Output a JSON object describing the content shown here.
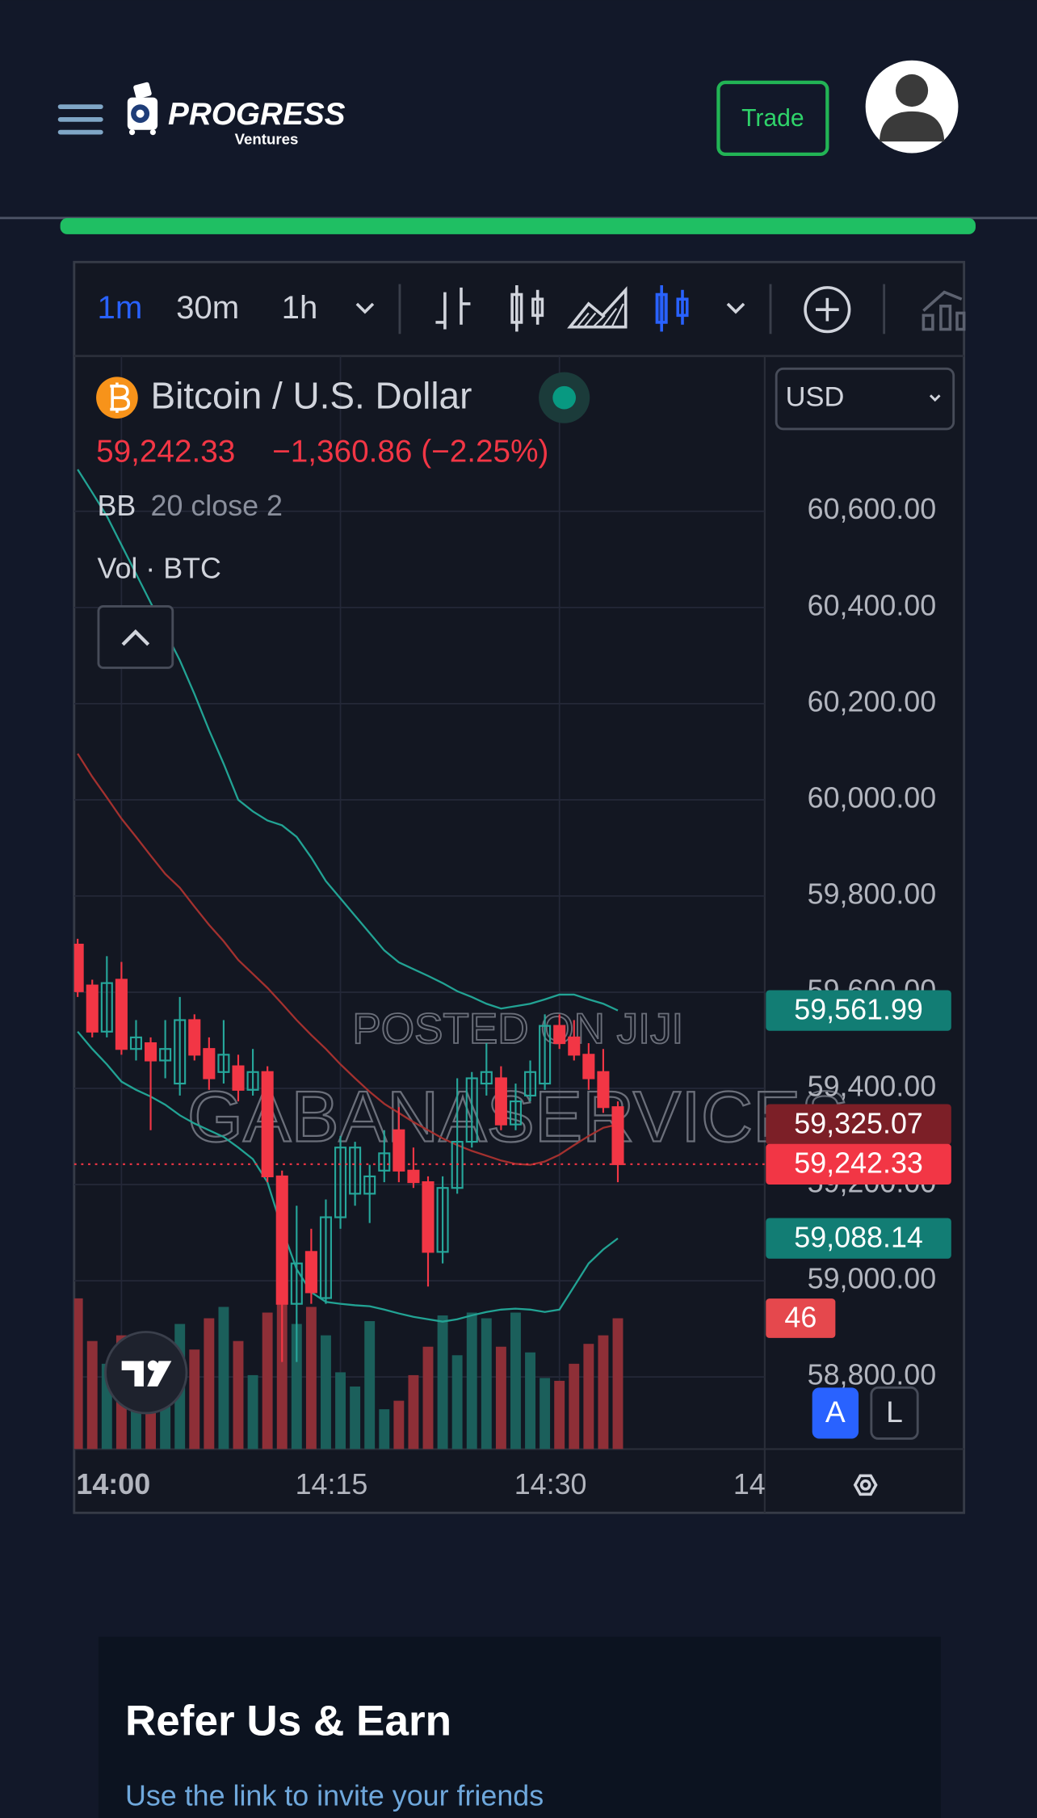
{
  "header": {
    "logo_title": "PROGRESS",
    "logo_subtitle": "Ventures",
    "trade_button": "Trade"
  },
  "toolbar": {
    "intervals": [
      "1m",
      "30m",
      "1h"
    ]
  },
  "chart_data": {
    "type": "candlestick",
    "symbol": "Bitcoin / U.S. Dollar",
    "currency": "USD",
    "close_label": "59,242.33",
    "change_label": "−1,360.86 (−2.25%)",
    "indicator_name": "BB",
    "indicator_params": "20 close 2",
    "volume_label": "Vol · BTC",
    "watermarks": [
      "POSTED ON JIJI",
      "GABANASERVICES"
    ],
    "scale_buttons": [
      "A",
      "L"
    ],
    "up_color": "#26a69a",
    "down_color": "#f23645",
    "volume_up_color": "#1b5f5b",
    "volume_down_color": "#8e2f37",
    "ylim": [
      58650,
      60923
    ],
    "yticks": [
      {
        "value": 60600,
        "label": "60,600.00"
      },
      {
        "value": 60400,
        "label": "60,400.00"
      },
      {
        "value": 60200,
        "label": "60,200.00"
      },
      {
        "value": 60000,
        "label": "60,000.00"
      },
      {
        "value": 59800,
        "label": "59,800.00"
      },
      {
        "value": 59600,
        "label": "59,600.00"
      },
      {
        "value": 59400,
        "label": "59,400.00"
      },
      {
        "value": 59200,
        "label": "59,200.00"
      },
      {
        "value": 59000,
        "label": "59,000.00"
      },
      {
        "value": 58800,
        "label": "58,800.00"
      }
    ],
    "xlim": [
      -0.24,
      47.06
    ],
    "xticks": [
      {
        "value": 3,
        "label": "14:00"
      },
      {
        "value": 18,
        "label": "14:15"
      },
      {
        "value": 33,
        "label": "14:30"
      },
      {
        "value": 48,
        "label": "14:"
      }
    ],
    "grid": true,
    "open": [
      59699,
      59614,
      59518,
      59626,
      59482,
      59494,
      59458,
      59410,
      59542,
      59482,
      59434,
      59446,
      59397,
      59434,
      59217,
      58952,
      59060,
      58964,
      59132,
      59181,
      59181,
      59229,
      59313,
      59229,
      59205,
      59060,
      59193,
      59289,
      59410,
      59421,
      59325,
      59385,
      59410,
      59530,
      59506,
      59470,
      59434,
      59361
    ],
    "high": [
      59711,
      59626,
      59675,
      59663,
      59542,
      59506,
      59542,
      59590,
      59554,
      59506,
      59542,
      59470,
      59482,
      59446,
      59229,
      59156,
      59108,
      59169,
      59301,
      59289,
      59241,
      59313,
      59361,
      59277,
      59217,
      59217,
      59421,
      59434,
      59494,
      59446,
      59410,
      59458,
      59554,
      59554,
      59542,
      59494,
      59482,
      59373
    ],
    "low": [
      59590,
      59506,
      59506,
      59470,
      59458,
      59313,
      59421,
      59385,
      59458,
      59397,
      59410,
      59373,
      59385,
      59205,
      58831,
      58831,
      58952,
      58952,
      59108,
      59156,
      59120,
      59205,
      59205,
      59193,
      58988,
      59036,
      59181,
      59277,
      59385,
      59313,
      59313,
      59373,
      59397,
      59482,
      59458,
      59397,
      59349,
      59205
    ],
    "close": [
      59602,
      59518,
      59619,
      59482,
      59506,
      59458,
      59482,
      59542,
      59470,
      59421,
      59470,
      59397,
      59434,
      59217,
      58952,
      59036,
      58976,
      59132,
      59277,
      59277,
      59217,
      59265,
      59229,
      59205,
      59060,
      59193,
      59289,
      59421,
      59434,
      59325,
      59373,
      59434,
      59530,
      59494,
      59470,
      59421,
      59361,
      59242.33
    ],
    "volume": [
      53,
      38,
      30,
      40,
      28,
      36,
      26,
      44,
      35,
      46,
      50,
      38,
      26,
      48,
      53,
      44,
      50,
      40,
      27,
      22,
      45,
      14,
      17,
      26,
      36,
      47,
      33,
      48,
      46,
      36,
      48,
      34,
      25,
      24,
      30,
      37,
      40,
      46
    ],
    "bands": {
      "band_color": "#22a394",
      "basis_color": "#a3312f",
      "upper": [
        60687,
        60639,
        60590,
        60530,
        60470,
        60410,
        60350,
        60290,
        60220,
        60145,
        60075,
        60000,
        59976,
        59957,
        59947,
        59923,
        59880,
        59831,
        59795,
        59759,
        59723,
        59687,
        59662,
        59648,
        59634,
        59619,
        59602,
        59590,
        59576,
        59566,
        59571,
        59576,
        59585,
        59595,
        59595,
        59585,
        59576,
        59561.99
      ],
      "basis": [
        60096,
        60048,
        60005,
        59961,
        59923,
        59884,
        59846,
        59817,
        59778,
        59740,
        59706,
        59667,
        59638,
        59609,
        59576,
        59542,
        59511,
        59482,
        59450,
        59421,
        59393,
        59368,
        59349,
        59330,
        59313,
        59296,
        59282,
        59270,
        59260,
        59250,
        59243,
        59241,
        59248,
        59262,
        59282,
        59301,
        59318,
        59325.07
      ],
      "lower": [
        59518,
        59482,
        59450,
        59414,
        59397,
        59383,
        59366,
        59344,
        59327,
        59313,
        59299,
        59277,
        59253,
        59205,
        59108,
        59024,
        58976,
        58956,
        58952,
        58949,
        58947,
        58940,
        58932,
        58925,
        58920,
        58915,
        58920,
        58928,
        58935,
        58940,
        58942,
        58940,
        58935,
        58940,
        58988,
        59036,
        59065,
        59088.14
      ],
      "upper_label": "59,561.99",
      "basis_label": "59,325.07",
      "lower_label": "59,088.14"
    }
  },
  "referral": {
    "title": "Refer Us & Earn",
    "text": "Use the link to invite your friends"
  }
}
